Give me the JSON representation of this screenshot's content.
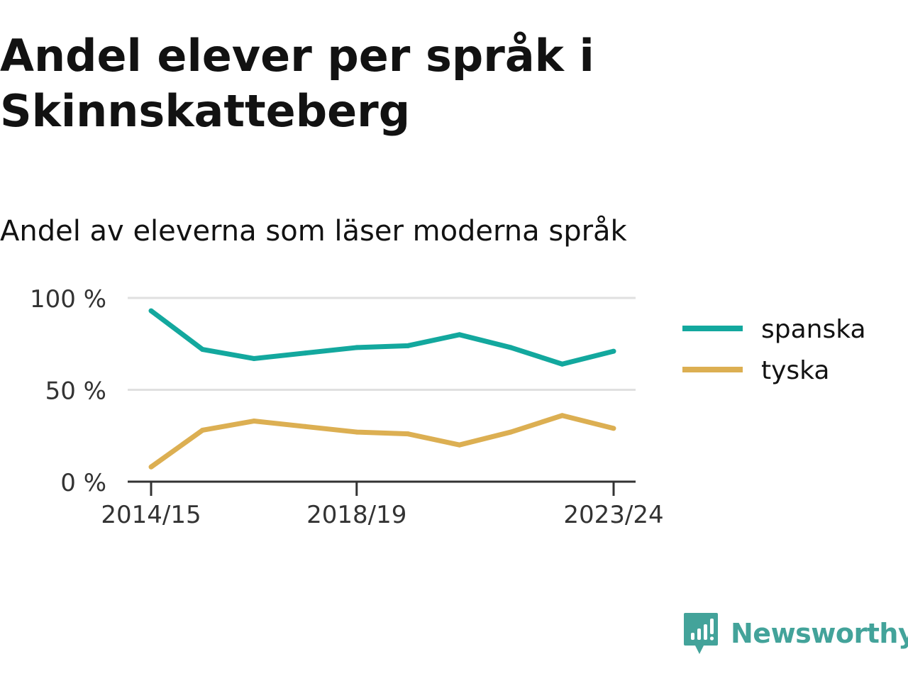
{
  "title": "Andel elever per språk i Skinnskatteberg",
  "subtitle": "Andel av eleverna som läser moderna språk",
  "brand": "Newsworthy",
  "colors": {
    "spanska": "#13a89e",
    "tyska": "#dcaf52",
    "grid": "#e0e0e0",
    "axis": "#333333",
    "text": "#121212",
    "brand": "#43a39a"
  },
  "chart_data": {
    "type": "line",
    "x": [
      "2014/15",
      "2015/16",
      "2016/17",
      "2017/18",
      "2018/19",
      "2019/20",
      "2020/21",
      "2021/22",
      "2022/23",
      "2023/24"
    ],
    "x_tick_labels": [
      "2014/15",
      "2018/19",
      "2023/24"
    ],
    "y_ticks": [
      "0 %",
      "50 %",
      "100 %"
    ],
    "ylim": [
      0,
      100
    ],
    "grid": true,
    "legend_position": "right",
    "series": [
      {
        "name": "spanska",
        "values": [
          93,
          72,
          67,
          70,
          73,
          74,
          80,
          73,
          64,
          71
        ]
      },
      {
        "name": "tyska",
        "values": [
          8,
          28,
          33,
          30,
          27,
          26,
          20,
          27,
          36,
          29
        ]
      }
    ]
  }
}
